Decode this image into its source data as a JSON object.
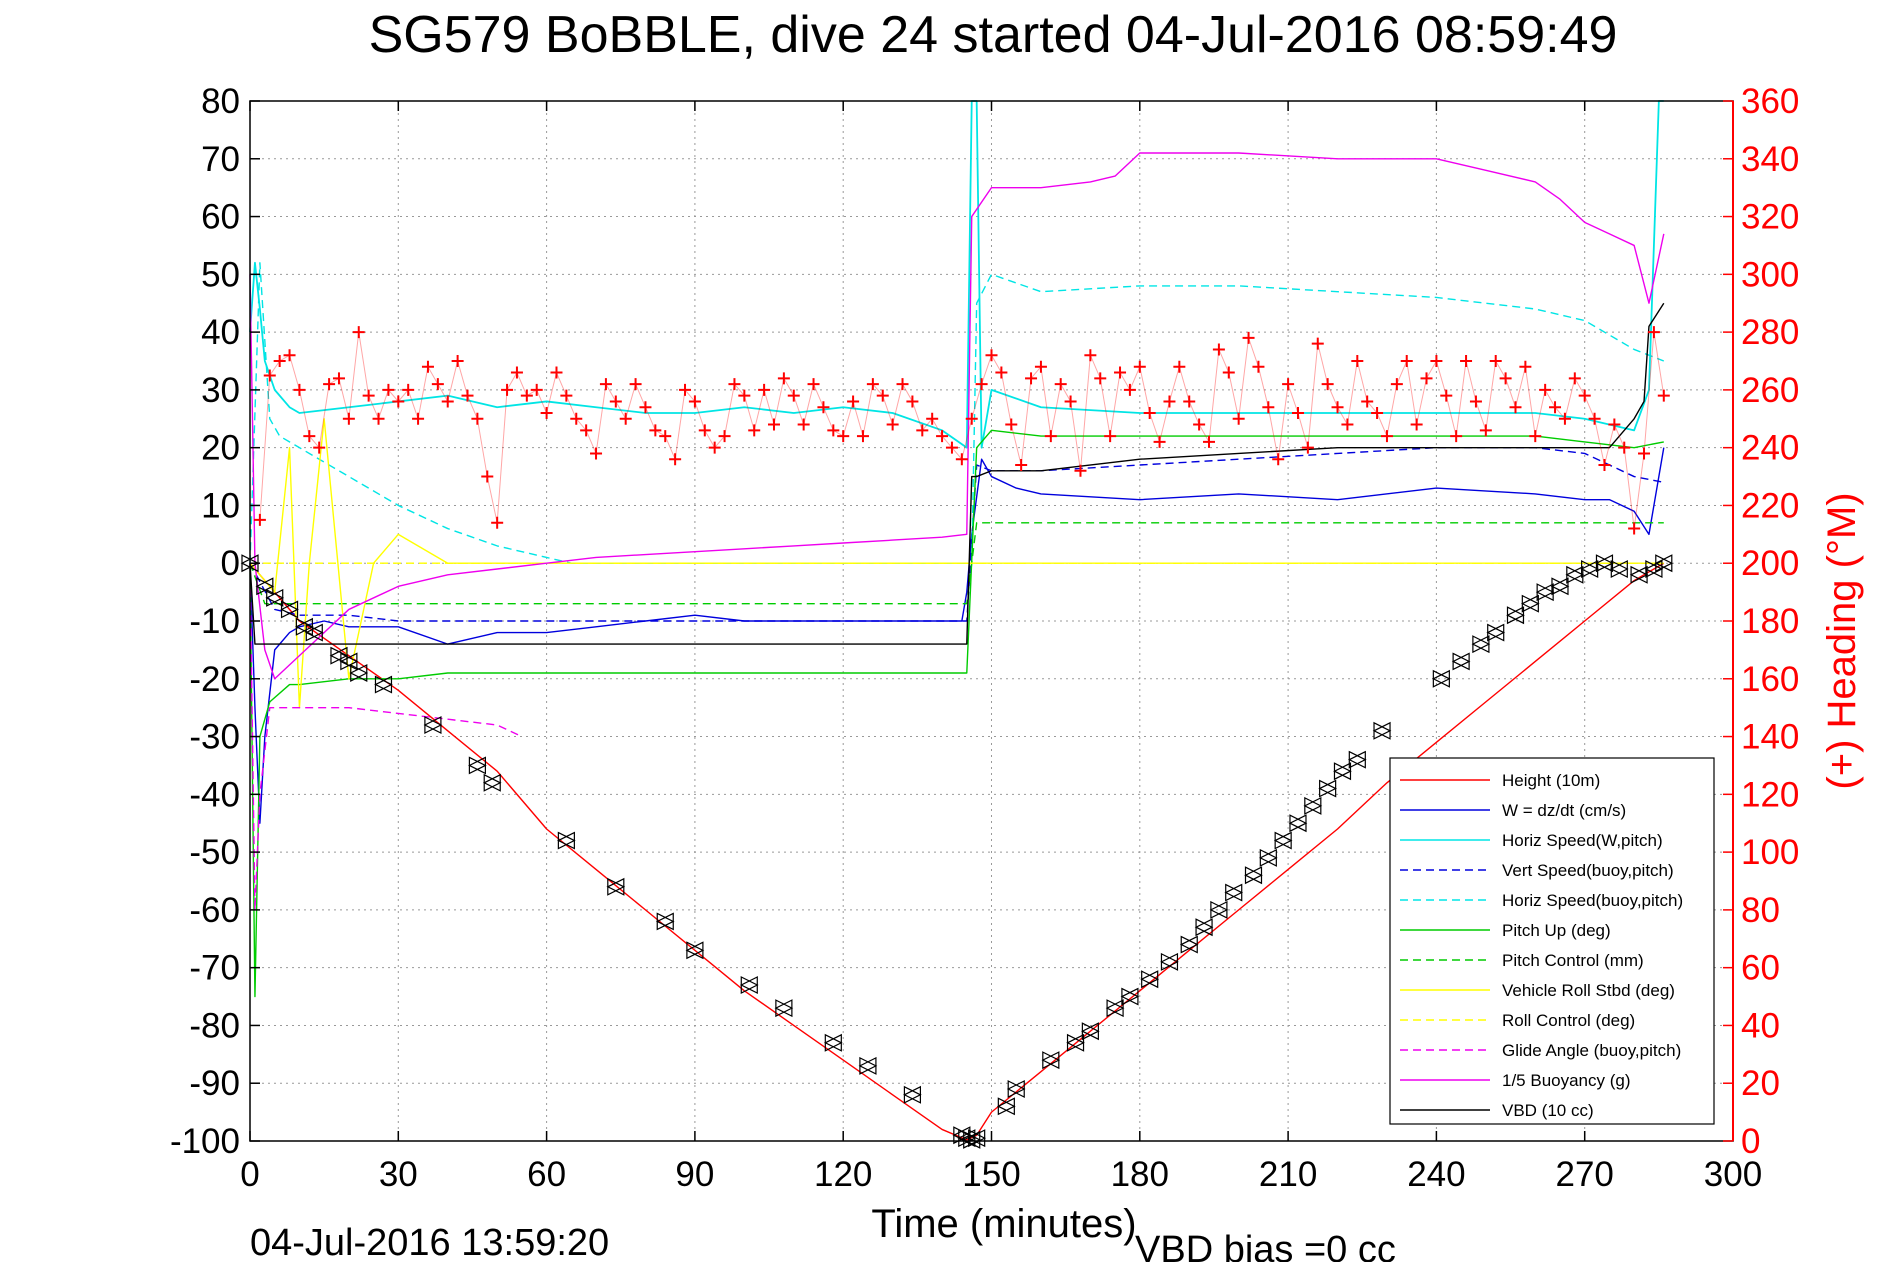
{
  "chart_data": {
    "type": "line",
    "title": "SG579 BoBBLE, dive 24 started 04-Jul-2016 08:59:49",
    "xlabel": "Time (minutes)",
    "ylabel_right": "(+) Heading (°M)",
    "footer_left": "04-Jul-2016 13:59:20",
    "footer_right": "VBD bias =0 cc",
    "xlim": [
      0,
      300
    ],
    "ylim_left": [
      -100,
      80
    ],
    "ylim_right": [
      0,
      360
    ],
    "xticks": [
      "0",
      "30",
      "60",
      "90",
      "120",
      "150",
      "180",
      "210",
      "240",
      "270",
      "300"
    ],
    "yticks_left": [
      "80",
      "70",
      "60",
      "50",
      "40",
      "30",
      "20",
      "10",
      "0",
      "-10",
      "-20",
      "-30",
      "-40",
      "-50",
      "-60",
      "-70",
      "-80",
      "-90",
      "-100"
    ],
    "yticks_right": [
      "360",
      "340",
      "320",
      "300",
      "280",
      "260",
      "240",
      "220",
      "200",
      "180",
      "160",
      "140",
      "120",
      "100",
      "80",
      "60",
      "40",
      "20",
      "0"
    ],
    "grid": true,
    "legend_position": "bottom-right",
    "legend": [
      {
        "label": "Height (10m)",
        "color": "#ff0000",
        "dash": "solid"
      },
      {
        "label": "W = dz/dt (cm/s)",
        "color": "#0000dd",
        "dash": "solid"
      },
      {
        "label": "Horiz Speed(W,pitch)",
        "color": "#00e5e5",
        "dash": "solid"
      },
      {
        "label": "Vert Speed(buoy,pitch)",
        "color": "#0000dd",
        "dash": "dashed"
      },
      {
        "label": "Horiz Speed(buoy,pitch)",
        "color": "#00e5e5",
        "dash": "dashed"
      },
      {
        "label": "Pitch Up (deg)",
        "color": "#00cc00",
        "dash": "solid"
      },
      {
        "label": "Pitch Control (mm)",
        "color": "#00cc00",
        "dash": "dashed"
      },
      {
        "label": "Vehicle Roll Stbd (deg)",
        "color": "#ffff00",
        "dash": "solid"
      },
      {
        "label": "Roll Control (deg)",
        "color": "#ffff00",
        "dash": "dashed"
      },
      {
        "label": "Glide Angle (buoy,pitch)",
        "color": "#ee00ee",
        "dash": "dashed"
      },
      {
        "label": "1/5 Buoyancy (g)",
        "color": "#ee00ee",
        "dash": "solid"
      },
      {
        "label": "VBD (10 cc)",
        "color": "#000000",
        "dash": "solid"
      }
    ],
    "series": [
      {
        "name": "Height (10m)",
        "axis": "left",
        "color": "#ff0000",
        "dash": "solid",
        "x": [
          0,
          5,
          10,
          20,
          30,
          40,
          50,
          60,
          70,
          80,
          90,
          100,
          110,
          120,
          130,
          140,
          145,
          147,
          150,
          160,
          170,
          180,
          190,
          200,
          210,
          220,
          230,
          240,
          250,
          260,
          270,
          280,
          286
        ],
        "y": [
          0,
          -5,
          -10,
          -16,
          -22,
          -29,
          -36,
          -46,
          -53,
          -60,
          -67,
          -74,
          -80,
          -86,
          -92,
          -98,
          -99.8,
          -99,
          -95,
          -88,
          -81,
          -74,
          -67,
          -60,
          -53,
          -46,
          -38,
          -31,
          -24,
          -17,
          -10,
          -3,
          0
        ]
      },
      {
        "name": "W = dz/dt (cm/s)",
        "axis": "left",
        "color": "#0000dd",
        "dash": "solid",
        "x": [
          0,
          1,
          2,
          3,
          5,
          8,
          10,
          15,
          20,
          30,
          40,
          50,
          60,
          70,
          80,
          90,
          100,
          110,
          120,
          130,
          140,
          144,
          145,
          146,
          148,
          150,
          155,
          160,
          180,
          200,
          220,
          240,
          260,
          270,
          275,
          280,
          283,
          286
        ],
        "y": [
          0,
          -25,
          -45,
          -30,
          -15,
          -12,
          -11,
          -10,
          -11,
          -11,
          -14,
          -12,
          -12,
          -11,
          -10,
          -9,
          -10,
          -10,
          -10,
          -10,
          -10,
          -10,
          -5,
          5,
          18,
          15,
          13,
          12,
          11,
          12,
          11,
          13,
          12,
          11,
          11,
          9,
          5,
          20
        ]
      },
      {
        "name": "Horiz Speed(W,pitch)",
        "axis": "left",
        "color": "#00e5e5",
        "dash": "solid",
        "x": [
          0,
          1,
          2,
          3,
          5,
          8,
          10,
          20,
          30,
          40,
          50,
          60,
          70,
          80,
          90,
          100,
          110,
          120,
          130,
          140,
          145,
          146,
          147,
          148,
          150,
          160,
          180,
          200,
          220,
          240,
          260,
          270,
          280,
          283,
          285,
          286
        ],
        "y": [
          40,
          52,
          44,
          35,
          30,
          27,
          26,
          27,
          28,
          29,
          27,
          28,
          27,
          26,
          26,
          27,
          26,
          27,
          26,
          23,
          20,
          80,
          80,
          20,
          30,
          27,
          26,
          26,
          26,
          26,
          26,
          25,
          23,
          30,
          80,
          80
        ]
      },
      {
        "name": "Vert Speed(buoy,pitch)",
        "axis": "left",
        "color": "#0000dd",
        "dash": "dashed",
        "x": [
          0,
          5,
          10,
          20,
          30,
          40,
          50,
          60,
          70,
          145,
          147,
          150,
          160,
          180,
          200,
          220,
          240,
          260,
          270,
          280,
          286
        ],
        "y": [
          0,
          -8,
          -9,
          -9,
          -10,
          -10,
          -10,
          -10,
          -10,
          -10,
          17,
          16,
          16,
          17,
          18,
          19,
          20,
          20,
          19,
          15,
          14
        ]
      },
      {
        "name": "Horiz Speed(buoy,pitch)",
        "axis": "left",
        "color": "#00e5e5",
        "dash": "dashed",
        "x": [
          0,
          2,
          4,
          6,
          10,
          20,
          30,
          40,
          50,
          60,
          65,
          146,
          147,
          150,
          160,
          180,
          200,
          220,
          240,
          260,
          270,
          280,
          286
        ],
        "y": [
          0,
          52,
          25,
          22,
          20,
          15,
          10,
          6,
          3,
          1,
          0,
          0,
          45,
          50,
          47,
          48,
          48,
          47,
          46,
          44,
          42,
          37,
          35
        ]
      },
      {
        "name": "Pitch Up (deg)",
        "axis": "left",
        "color": "#00cc00",
        "dash": "solid",
        "x": [
          0,
          1,
          2,
          4,
          8,
          10,
          20,
          30,
          40,
          60,
          80,
          100,
          120,
          145,
          147,
          150,
          160,
          180,
          200,
          220,
          240,
          260,
          270,
          280,
          286
        ],
        "y": [
          0,
          -75,
          -30,
          -24,
          -21,
          -21,
          -20,
          -20,
          -19,
          -19,
          -19,
          -19,
          -19,
          -19,
          20,
          23,
          22,
          22,
          22,
          22,
          22,
          22,
          21,
          20,
          21
        ]
      },
      {
        "name": "Pitch Control (mm)",
        "axis": "left",
        "color": "#00cc00",
        "dash": "dashed",
        "x": [
          0,
          3,
          10,
          20,
          30,
          145,
          147,
          150,
          180,
          200,
          220,
          240,
          260,
          270,
          286
        ],
        "y": [
          0,
          -7,
          -7,
          -7,
          -7,
          -7,
          7,
          7,
          7,
          7,
          7,
          7,
          7,
          7,
          7
        ]
      },
      {
        "name": "Vehicle Roll Stbd (deg)",
        "axis": "left",
        "color": "#ffff00",
        "dash": "solid",
        "x": [
          0,
          5,
          8,
          10,
          12,
          15,
          20,
          25,
          30,
          40,
          50,
          60,
          70,
          80,
          90,
          100,
          110,
          120,
          130,
          140,
          145,
          150,
          160,
          180,
          200,
          220,
          240,
          260,
          270,
          280,
          286
        ],
        "y": [
          0,
          -5,
          20,
          -25,
          0,
          25,
          -20,
          0,
          5,
          0,
          0,
          0,
          0,
          0,
          0,
          0,
          0,
          0,
          0,
          0,
          0,
          0,
          0,
          0,
          0,
          0,
          0,
          0,
          0,
          0,
          0
        ]
      },
      {
        "name": "Roll Control (deg)",
        "axis": "left",
        "color": "#ffff00",
        "dash": "dashed",
        "x": [
          0,
          50,
          100,
          145,
          150,
          200,
          250,
          286
        ],
        "y": [
          0,
          0,
          0,
          0,
          0,
          0,
          0,
          0
        ]
      },
      {
        "name": "Glide Angle (buoy,pitch)",
        "axis": "left",
        "color": "#ee00ee",
        "dash": "dashed",
        "x": [
          0,
          1,
          2,
          4,
          6,
          10,
          20,
          30,
          40,
          50,
          55
        ],
        "y": [
          0,
          -60,
          -40,
          -25,
          -25,
          -25,
          -25,
          -26,
          -27,
          -28,
          -30
        ]
      },
      {
        "name": "1/5 Buoyancy (g)",
        "axis": "left",
        "color": "#ee00ee",
        "dash": "solid",
        "x": [
          0,
          1,
          3,
          5,
          10,
          20,
          30,
          40,
          50,
          60,
          70,
          80,
          90,
          100,
          110,
          120,
          130,
          140,
          145,
          146,
          150,
          160,
          170,
          175,
          180,
          190,
          200,
          220,
          240,
          250,
          260,
          265,
          270,
          275,
          280,
          283,
          286
        ],
        "y": [
          50,
          0,
          -15,
          -20,
          -16,
          -8,
          -4,
          -2,
          -1,
          0,
          1,
          1.5,
          2,
          2.5,
          3,
          3.5,
          4,
          4.5,
          5,
          60,
          65,
          65,
          66,
          67,
          71,
          71,
          71,
          70,
          70,
          68,
          66,
          63,
          59,
          57,
          55,
          45,
          57
        ]
      },
      {
        "name": "VBD (10 cc)",
        "axis": "left",
        "color": "#000000",
        "dash": "solid",
        "x": [
          0,
          1,
          2,
          10,
          30,
          60,
          90,
          120,
          145,
          146,
          147,
          150,
          160,
          180,
          200,
          220,
          240,
          260,
          270,
          275,
          280,
          282,
          283,
          286
        ],
        "y": [
          0,
          -14,
          -14,
          -14,
          -14,
          -14,
          -14,
          -14,
          -14,
          15,
          15,
          16,
          16,
          18,
          19,
          20,
          20,
          20,
          20,
          20,
          25,
          28,
          41,
          45
        ]
      },
      {
        "name": "(+) Heading (°M)",
        "axis": "right",
        "color": "#ff0000",
        "marker": "+",
        "x": [
          2,
          4,
          6,
          8,
          10,
          12,
          14,
          16,
          18,
          20,
          22,
          24,
          26,
          28,
          30,
          32,
          34,
          36,
          38,
          40,
          42,
          44,
          46,
          48,
          50,
          52,
          54,
          56,
          58,
          60,
          62,
          64,
          66,
          68,
          70,
          72,
          74,
          76,
          78,
          80,
          82,
          84,
          86,
          88,
          90,
          92,
          94,
          96,
          98,
          100,
          102,
          104,
          106,
          108,
          110,
          112,
          114,
          116,
          118,
          120,
          122,
          124,
          126,
          128,
          130,
          132,
          134,
          136,
          138,
          140,
          142,
          144,
          146,
          148,
          150,
          152,
          154,
          156,
          158,
          160,
          162,
          164,
          166,
          168,
          170,
          172,
          174,
          176,
          178,
          180,
          182,
          184,
          186,
          188,
          190,
          192,
          194,
          196,
          198,
          200,
          202,
          204,
          206,
          208,
          210,
          212,
          214,
          216,
          218,
          220,
          222,
          224,
          226,
          228,
          230,
          232,
          234,
          236,
          238,
          240,
          242,
          244,
          246,
          248,
          250,
          252,
          254,
          256,
          258,
          260,
          262,
          264,
          266,
          268,
          270,
          272,
          274,
          276,
          278,
          280,
          282,
          284,
          286
        ],
        "y": [
          215,
          265,
          270,
          272,
          260,
          244,
          240,
          262,
          264,
          250,
          280,
          258,
          250,
          260,
          256,
          260,
          250,
          268,
          262,
          256,
          270,
          258,
          250,
          230,
          214,
          260,
          266,
          258,
          260,
          252,
          266,
          258,
          250,
          246,
          238,
          262,
          256,
          250,
          262,
          254,
          246,
          244,
          236,
          260,
          256,
          246,
          240,
          244,
          262,
          258,
          246,
          260,
          248,
          264,
          258,
          248,
          262,
          254,
          246,
          244,
          256,
          244,
          262,
          258,
          248,
          262,
          256,
          246,
          250,
          244,
          240,
          236,
          250,
          262,
          272,
          266,
          248,
          234,
          264,
          268,
          244,
          262,
          256,
          232,
          272,
          264,
          244,
          266,
          260,
          268,
          252,
          242,
          256,
          268,
          256,
          248,
          242,
          274,
          266,
          250,
          278,
          268,
          254,
          236,
          262,
          252,
          240,
          276,
          262,
          254,
          248,
          270,
          256,
          252,
          244,
          262,
          270,
          248,
          264,
          270,
          258,
          244,
          270,
          256,
          246,
          270,
          264,
          254,
          268,
          244,
          260,
          254,
          250,
          264,
          258,
          250,
          234,
          248,
          240,
          212,
          238,
          280,
          258
        ]
      },
      {
        "name": "Depth markers",
        "axis": "left",
        "color": "#000000",
        "marker": "triangle",
        "x": [
          0,
          3,
          5,
          8,
          11,
          13,
          18,
          20,
          22,
          27,
          37,
          46,
          49,
          64,
          74,
          84,
          90,
          101,
          108,
          118,
          125,
          134,
          144,
          145,
          146,
          147,
          153,
          155,
          162,
          167,
          170,
          175,
          178,
          182,
          186,
          190,
          193,
          196,
          199,
          203,
          206,
          209,
          212,
          215,
          218,
          221,
          224,
          229,
          241,
          245,
          249,
          252,
          256,
          259,
          262,
          265,
          268,
          271,
          274,
          277,
          281,
          284,
          286
        ],
        "y": [
          0,
          -4,
          -6,
          -8,
          -11,
          -12,
          -16,
          -17,
          -19,
          -21,
          -28,
          -35,
          -38,
          -48,
          -56,
          -62,
          -67,
          -73,
          -77,
          -83,
          -87,
          -92,
          -99,
          -99.5,
          -99.8,
          -99.5,
          -94,
          -91,
          -86,
          -83,
          -81,
          -77,
          -75,
          -72,
          -69,
          -66,
          -63,
          -60,
          -57,
          -54,
          -51,
          -48,
          -45,
          -42,
          -39,
          -36,
          -34,
          -29,
          -20,
          -17,
          -14,
          -12,
          -9,
          -7,
          -5,
          -4,
          -2,
          -1,
          0,
          -1,
          -2,
          -1,
          0
        ]
      }
    ]
  }
}
